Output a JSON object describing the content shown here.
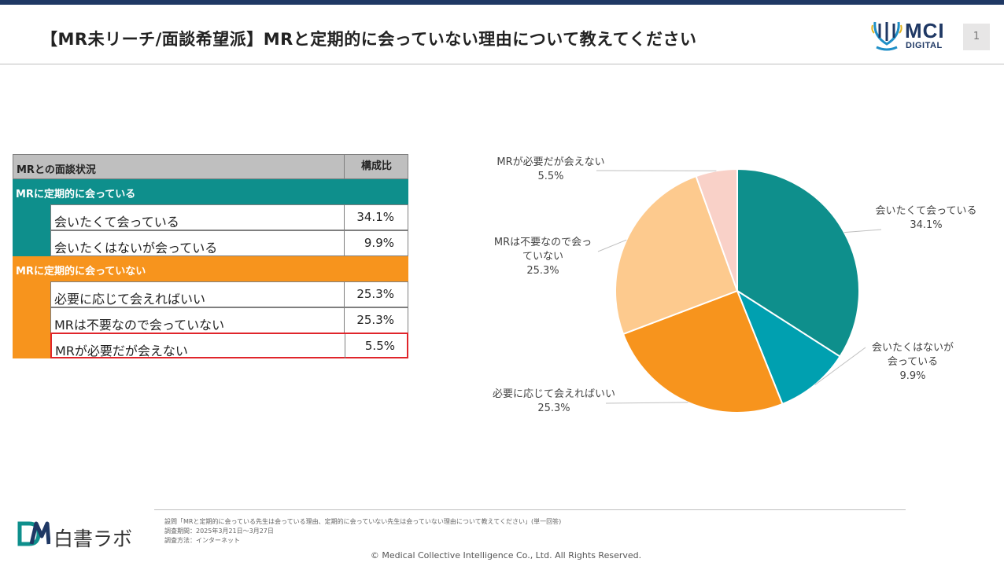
{
  "header": {
    "title": "【MR未リーチ/面談希望派】MRと定期的に会っていない理由について教えてください",
    "logo_name": "MCI",
    "logo_sub": "DIGITAL",
    "page_number": "1"
  },
  "table": {
    "header_label": "MRとの面談状況",
    "header_value": "構成比",
    "groups": [
      {
        "label": "MRに定期的に会っている",
        "items": [
          {
            "label": "会いたくて会っている",
            "value": "34.1%"
          },
          {
            "label": "会いたくはないが会っている",
            "value": "9.9%"
          }
        ]
      },
      {
        "label": "MRに定期的に会っていない",
        "items": [
          {
            "label": "必要に応じて会えればいい",
            "value": "25.3%"
          },
          {
            "label": "MRは不要なので会っていない",
            "value": "25.3%"
          },
          {
            "label": "MRが必要だが会えない",
            "value": "5.5%"
          }
        ]
      }
    ]
  },
  "chart_data": {
    "type": "pie",
    "slices": [
      {
        "label_lines": [
          "会いたくて会っている"
        ],
        "value": 34.1,
        "value_label": "34.1%",
        "color": "#0e8f8c"
      },
      {
        "label_lines": [
          "会いたくはないが",
          "会っている"
        ],
        "value": 9.9,
        "value_label": "9.9%",
        "color": "#00a0b0"
      },
      {
        "label_lines": [
          "必要に応じて会えればいい"
        ],
        "value": 25.3,
        "value_label": "25.3%",
        "color": "#f7941d"
      },
      {
        "label_lines": [
          "MRは不要なので会っ",
          "ていない"
        ],
        "value": 25.3,
        "value_label": "25.3%",
        "color": "#fdca8e"
      },
      {
        "label_lines": [
          "MRが必要だが会えない"
        ],
        "value": 5.5,
        "value_label": "5.5%",
        "color": "#f9d1c8"
      }
    ]
  },
  "footer": {
    "notes": [
      "設問「MRと定期的に会っている先生は会っている理由、定期的に会っていない先生は会っていない理由について教えてください」(単一回答)",
      "調査期間：2025年3月21日～3月27日",
      "調査方法：インターネット"
    ],
    "brand": "白書ラボ",
    "copyright": "© Medical Collective Intelligence Co., Ltd. All Rights Reserved."
  },
  "colors": {
    "navy": "#1f3864",
    "teal": "#0e8f8c",
    "orange": "#f7941d",
    "highlight": "#e0252b"
  }
}
